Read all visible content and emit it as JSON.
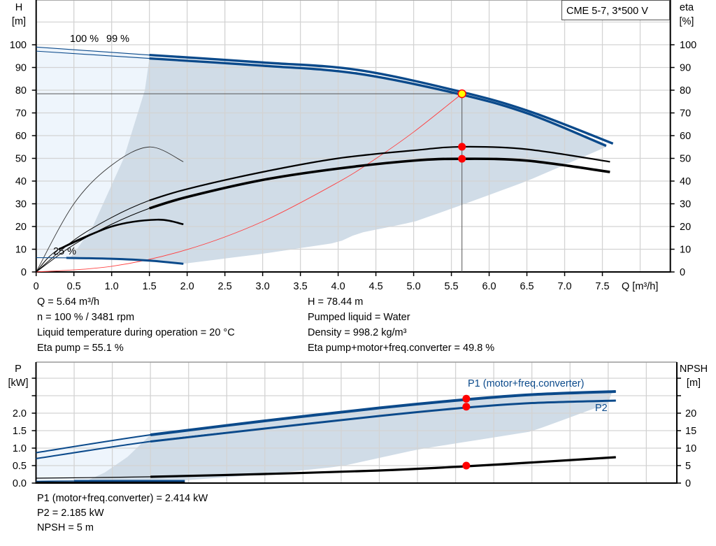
{
  "colors": {
    "curve_blue": "#0b4a8b",
    "shade_dark": "#d0dce7",
    "shade_light": "#eef5fc",
    "operating_point": "#ff0000",
    "duty_point_fill": "#ffff00",
    "system_curve": "#ff4040"
  },
  "chart_data": [
    {
      "type": "line",
      "title": "CME 5-7, 3*500 V",
      "xlabel": "Q [m³/h]",
      "ylabel": [
        "H",
        "[m]"
      ],
      "y2label": [
        "eta",
        "[%]"
      ],
      "xlim": [
        0,
        8.4
      ],
      "ylim": [
        0,
        119.7
      ],
      "y2lim": [
        0,
        119.7
      ],
      "grid": true,
      "x_ticks": [
        "0",
        "0.5",
        "1.0",
        "1.5",
        "2.0",
        "2.5",
        "3.0",
        "3.5",
        "4.0",
        "4.5",
        "5.0",
        "5.5",
        "6.0",
        "6.5",
        "7.0",
        "7.5"
      ],
      "y_ticks": [
        "0",
        "10",
        "20",
        "30",
        "40",
        "50",
        "60",
        "70",
        "80",
        "90",
        "100"
      ],
      "y2_ticks": [
        "0",
        "10",
        "20",
        "30",
        "40",
        "50",
        "60",
        "70",
        "80",
        "90",
        "100"
      ],
      "series": [
        {
          "name": "100 %",
          "kind": "H",
          "x": [
            0,
            1.5,
            3,
            4.26,
            5.64,
            6.55,
            7.64
          ],
          "y": [
            99,
            95.5,
            92.2,
            88.9,
            79.2,
            70.5,
            56.5
          ]
        },
        {
          "name": "99 %",
          "kind": "H",
          "x": [
            0,
            1.5,
            3,
            4.26,
            5.64,
            6.55,
            7.55
          ],
          "y": [
            97.2,
            94,
            90.8,
            87.3,
            78,
            69.3,
            55.5
          ]
        },
        {
          "name": "25 %",
          "kind": "H",
          "x": [
            0,
            0.4,
            1,
            1.5,
            1.95
          ],
          "y": [
            6.3,
            6.2,
            5.8,
            5,
            3.6
          ]
        },
        {
          "kind": "eta pump",
          "x": [
            0,
            0.5,
            1,
            1.5,
            2,
            3,
            4,
            5,
            5.64,
            6.5,
            7.6
          ],
          "y": [
            0,
            14,
            24,
            31.5,
            36.5,
            44,
            50,
            53.5,
            55.1,
            54,
            48.5
          ]
        },
        {
          "kind": "eta pump+motor+freq.converter",
          "x": [
            0,
            0.5,
            1,
            1.5,
            2,
            3,
            4,
            5,
            5.64,
            6.5,
            7.6
          ],
          "y": [
            0,
            12,
            21,
            28,
            33,
            40.5,
            45.5,
            49,
            49.8,
            49,
            44
          ]
        },
        {
          "kind": "eta reduced speed",
          "x": [
            0,
            0.5,
            1,
            1.5,
            1.95
          ],
          "y": [
            0,
            30,
            47,
            55,
            48.5
          ]
        },
        {
          "kind": "eta reduced speed total",
          "x": [
            0,
            0.3,
            1,
            1.6,
            1.95
          ],
          "y": [
            0,
            10,
            20,
            23,
            21
          ]
        },
        {
          "kind": "system curve",
          "x": [
            0,
            1,
            2,
            3,
            4,
            4.5,
            5,
            5.64
          ],
          "y": [
            0,
            2.47,
            9.86,
            22.2,
            39.5,
            49.9,
            61.6,
            78.44
          ]
        }
      ],
      "lower_limit": {
        "x": [
          1.95,
          3,
          4,
          4.26,
          5,
          5.64,
          6.5,
          7.55
        ],
        "y": [
          3.6,
          8,
          13,
          17,
          22,
          29.5,
          40,
          55
        ]
      },
      "operating_point": {
        "Q": 5.64,
        "H": 78.44,
        "eta_pump": 55.1,
        "eta_total": 49.8
      },
      "annotations": [
        "100 %",
        "99 %",
        "25 %"
      ]
    },
    {
      "type": "line",
      "xlim": [
        0,
        8.4
      ],
      "ylim": [
        0,
        3.46
      ],
      "y2lim": [
        0,
        34.6
      ],
      "ylabel": [
        "P",
        "[kW]"
      ],
      "y2label": [
        "NPSH",
        "[m]"
      ],
      "grid": true,
      "y_ticks": [
        "0.0",
        "0.5",
        "1.0",
        "1.5",
        "2.0"
      ],
      "y2_ticks": [
        "0",
        "5",
        "10",
        "15",
        "20"
      ],
      "series": [
        {
          "name": "P1 (motor+freq.converter)",
          "x": [
            0,
            1.5,
            3,
            4.5,
            5.64,
            6.5,
            7.6
          ],
          "y": [
            0.87,
            1.38,
            1.78,
            2.15,
            2.39,
            2.53,
            2.62
          ]
        },
        {
          "name": "P2",
          "x": [
            0,
            1.5,
            3,
            4.5,
            5.64,
            6.5,
            7.6
          ],
          "y": [
            0.7,
            1.19,
            1.56,
            1.92,
            2.16,
            2.29,
            2.36
          ]
        },
        {
          "kind": "NPSH [m]",
          "x": [
            0,
            1.5,
            3,
            4.5,
            5.64,
            6.5,
            7.6
          ],
          "y": [
            1.4,
            1.8,
            2.6,
            3.6,
            4.8,
            5.9,
            7.4
          ]
        },
        {
          "kind": "P low speed",
          "x": [
            0,
            0.5,
            1.95
          ],
          "y": [
            0.05,
            0.06,
            0.06
          ]
        }
      ],
      "lower_limit": {
        "x": [
          0.6,
          1.95,
          3,
          4,
          5,
          6.5,
          7.5
        ],
        "y": [
          0,
          0.08,
          0.25,
          0.48,
          0.96,
          1.48,
          2.28
        ]
      },
      "operating_point": {
        "Q": 5.64,
        "P1": 2.414,
        "P2": 2.185,
        "NPSH": 5
      }
    }
  ],
  "info": {
    "q": "Q = 5.64 m³/h",
    "n": "n = 100 % / 3481 rpm",
    "temp": "Liquid temperature during operation = 20 °C",
    "eta_pump": "Eta pump = 55.1 %",
    "h": "H = 78.44 m",
    "liquid": "Pumped liquid = Water",
    "density": "Density = 998.2 kg/m³",
    "eta_total": "Eta pump+motor+freq.converter = 49.8 %",
    "p1": "P1 (motor+freq.converter) = 2.414 kW",
    "p2": "P2 = 2.185 kW",
    "npsh": "NPSH = 5 m"
  }
}
